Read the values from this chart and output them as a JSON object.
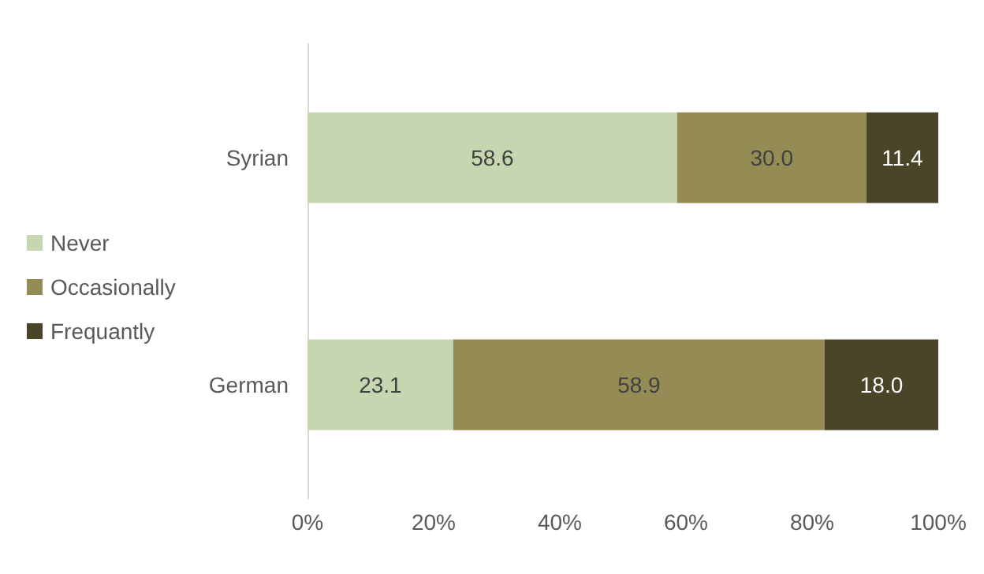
{
  "chart_data": {
    "type": "bar",
    "orientation": "horizontal",
    "stacked": true,
    "categories": [
      "Syrian",
      "German"
    ],
    "series": [
      {
        "name": "Never",
        "color": "#c5d6b1",
        "values": [
          58.6,
          23.1
        ],
        "value_labels": [
          "58.6",
          "23.1"
        ]
      },
      {
        "name": "Occasionally",
        "color": "#948b55",
        "values": [
          30.0,
          58.9
        ],
        "value_labels": [
          "30.0",
          "58.9"
        ]
      },
      {
        "name": "Frequantly",
        "color": "#4a4429",
        "values": [
          11.4,
          18.0
        ],
        "value_labels": [
          "11.4",
          "18.0"
        ]
      }
    ],
    "xlim": [
      0,
      100
    ],
    "xticks": [
      {
        "value": 0,
        "label": "0%"
      },
      {
        "value": 20,
        "label": "20%"
      },
      {
        "value": 40,
        "label": "40%"
      },
      {
        "value": 60,
        "label": "60%"
      },
      {
        "value": 80,
        "label": "80%"
      },
      {
        "value": 100,
        "label": "100%"
      }
    ],
    "grid": false,
    "legend": "left"
  }
}
